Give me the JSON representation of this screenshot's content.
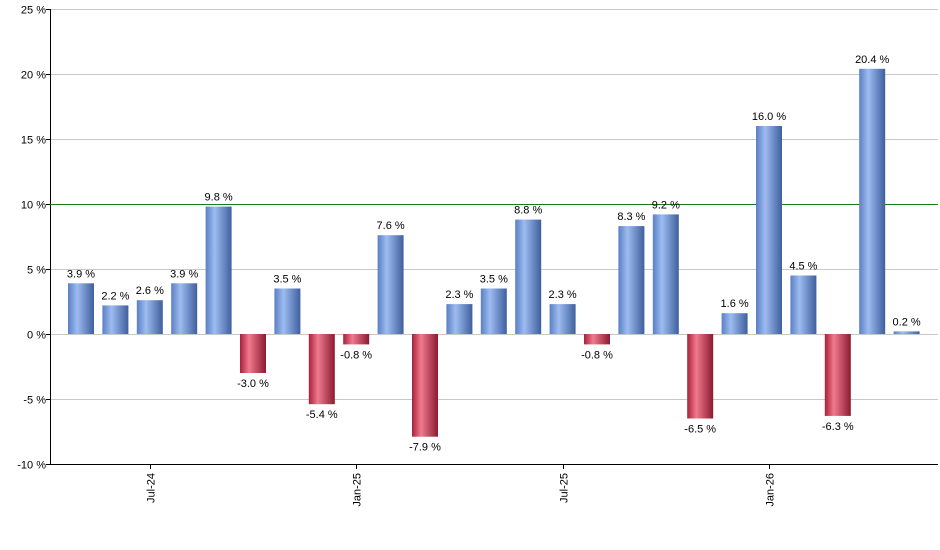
{
  "chart_data": {
    "type": "bar",
    "title": "",
    "xlabel": "",
    "ylabel": "",
    "ylim": [
      -10,
      25
    ],
    "y_ticks": [
      "25 %",
      "20 %",
      "15 %",
      "10 %",
      "5 %",
      "0 %",
      "-5 %",
      "-10 %"
    ],
    "y_tick_values": [
      25,
      20,
      15,
      10,
      5,
      0,
      -5,
      -10
    ],
    "x_ticks": [
      {
        "label": "Jul-24",
        "bar_index": 2
      },
      {
        "label": "Jan-25",
        "bar_index": 8
      },
      {
        "label": "Jul-25",
        "bar_index": 14
      },
      {
        "label": "Jan-26",
        "bar_index": 20
      }
    ],
    "values": [
      3.9,
      2.2,
      2.6,
      3.9,
      9.8,
      -3.0,
      3.5,
      -5.4,
      -0.8,
      7.6,
      -7.9,
      2.3,
      3.5,
      8.8,
      2.3,
      -0.8,
      8.3,
      9.2,
      -6.5,
      1.6,
      16.0,
      4.5,
      -6.3,
      20.4,
      0.2
    ],
    "labels": [
      "3.9 %",
      "2.2 %",
      "2.6 %",
      "3.9 %",
      "9.8 %",
      "-3.0 %",
      "3.5 %",
      "-5.4 %",
      "-0.8 %",
      "7.6 %",
      "-7.9 %",
      "2.3 %",
      "3.5 %",
      "8.8 %",
      "2.3 %",
      "-0.8 %",
      "8.3 %",
      "9.2 %",
      "-6.5 %",
      "1.6 %",
      "16.0 %",
      "4.5 %",
      "-6.3 %",
      "20.4 %",
      "0.2 %"
    ],
    "reference_line": {
      "value": 10,
      "color": "#1a7a1a"
    },
    "grid": true,
    "legend": "none",
    "colors": {
      "positive": "#6f95d8",
      "negative": "#c8334f"
    }
  }
}
